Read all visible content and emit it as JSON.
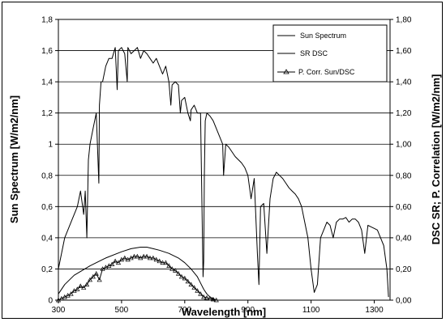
{
  "chart_data": {
    "type": "line",
    "xlabel": "Wavelength [nm]",
    "ylabel": "Sun Spectrum [W/m2/nm]",
    "y2label": "DSC SR; P. Correlation [W/m2/nm]",
    "xlim": [
      300,
      1350
    ],
    "ylim": [
      0,
      1.8
    ],
    "y2lim": [
      0,
      1.8
    ],
    "x_ticks": [
      "300",
      "500",
      "700",
      "900",
      "1100",
      "1300"
    ],
    "x_tick_values": [
      300,
      500,
      700,
      900,
      1100,
      1300
    ],
    "y_ticks": [
      "0",
      "0,2",
      "0,4",
      "0,6",
      "0,8",
      "1",
      "1,2",
      "1,4",
      "1,6",
      "1,8"
    ],
    "y_tick_values": [
      0,
      0.2,
      0.4,
      0.6,
      0.8,
      1.0,
      1.2,
      1.4,
      1.6,
      1.8
    ],
    "y2_ticks": [
      "0,00",
      "0,20",
      "0,40",
      "0,60",
      "0,80",
      "1,00",
      "1,20",
      "1,40",
      "1,60",
      "1,80"
    ],
    "grid": "horizontal",
    "legend_position": "top-right",
    "series": [
      {
        "name": "Sun Spectrum",
        "color": "#000000",
        "x": [
          300,
          320,
          340,
          360,
          370,
          380,
          385,
          390,
          395,
          400,
          410,
          420,
          428,
          430,
          435,
          440,
          450,
          460,
          470,
          480,
          486,
          490,
          500,
          510,
          518,
          520,
          530,
          540,
          550,
          560,
          570,
          580,
          590,
          600,
          610,
          620,
          630,
          640,
          650,
          656,
          660,
          670,
          680,
          686,
          690,
          700,
          710,
          718,
          720,
          730,
          740,
          750,
          758,
          760,
          762,
          765,
          770,
          780,
          790,
          800,
          810,
          820,
          823,
          830,
          840,
          850,
          860,
          870,
          880,
          890,
          900,
          910,
          920,
          930,
          935,
          940,
          950,
          960,
          970,
          980,
          990,
          1000,
          1010,
          1020,
          1030,
          1040,
          1050,
          1060,
          1070,
          1080,
          1090,
          1100,
          1110,
          1120,
          1130,
          1140,
          1150,
          1160,
          1170,
          1180,
          1190,
          1200,
          1210,
          1220,
          1230,
          1240,
          1250,
          1260,
          1270,
          1280,
          1290,
          1300,
          1310,
          1320,
          1330,
          1340,
          1345
        ],
        "y": [
          0.2,
          0.4,
          0.5,
          0.6,
          0.7,
          0.55,
          0.7,
          0.4,
          0.9,
          1.0,
          1.1,
          1.2,
          0.75,
          1.25,
          1.4,
          1.4,
          1.5,
          1.55,
          1.55,
          1.62,
          1.35,
          1.6,
          1.62,
          1.58,
          1.4,
          1.62,
          1.58,
          1.6,
          1.62,
          1.55,
          1.6,
          1.58,
          1.55,
          1.52,
          1.55,
          1.5,
          1.45,
          1.5,
          1.4,
          1.25,
          1.38,
          1.4,
          1.38,
          1.2,
          1.28,
          1.3,
          1.2,
          1.15,
          1.22,
          1.25,
          1.2,
          1.2,
          0.15,
          0.25,
          0.8,
          1.15,
          1.2,
          1.18,
          1.15,
          1.1,
          1.05,
          1.0,
          0.8,
          1.0,
          0.98,
          0.95,
          0.92,
          0.9,
          0.88,
          0.85,
          0.8,
          0.65,
          0.78,
          0.3,
          0.1,
          0.6,
          0.62,
          0.3,
          0.65,
          0.78,
          0.82,
          0.8,
          0.78,
          0.75,
          0.72,
          0.7,
          0.68,
          0.65,
          0.6,
          0.5,
          0.4,
          0.2,
          0.05,
          0.1,
          0.4,
          0.45,
          0.5,
          0.48,
          0.4,
          0.5,
          0.52,
          0.52,
          0.53,
          0.5,
          0.52,
          0.52,
          0.5,
          0.45,
          0.3,
          0.48,
          0.47,
          0.46,
          0.45,
          0.4,
          0.35,
          0.2,
          0.02
        ]
      },
      {
        "name": "SR DSC",
        "color": "#000000",
        "x": [
          300,
          320,
          350,
          400,
          450,
          500,
          530,
          560,
          580,
          600,
          620,
          650,
          680,
          700,
          720,
          740,
          750,
          760,
          770,
          780,
          790,
          800
        ],
        "y": [
          0.04,
          0.1,
          0.16,
          0.22,
          0.27,
          0.31,
          0.33,
          0.34,
          0.34,
          0.33,
          0.32,
          0.3,
          0.27,
          0.24,
          0.2,
          0.15,
          0.11,
          0.07,
          0.04,
          0.02,
          0.01,
          0.0
        ]
      },
      {
        "name": "P. Corr. Sun/DSC",
        "color": "#000000",
        "marker": "triangle",
        "x": [
          300,
          310,
          320,
          330,
          340,
          350,
          360,
          370,
          380,
          390,
          400,
          410,
          420,
          430,
          440,
          450,
          460,
          470,
          480,
          490,
          500,
          510,
          520,
          530,
          540,
          550,
          560,
          570,
          580,
          590,
          600,
          610,
          620,
          630,
          640,
          650,
          660,
          670,
          680,
          690,
          700,
          710,
          720,
          730,
          740,
          750,
          760,
          770,
          780,
          790,
          800
        ],
        "y": [
          0.0,
          0.01,
          0.02,
          0.03,
          0.04,
          0.06,
          0.07,
          0.09,
          0.08,
          0.1,
          0.13,
          0.15,
          0.17,
          0.13,
          0.2,
          0.21,
          0.22,
          0.23,
          0.25,
          0.24,
          0.26,
          0.27,
          0.26,
          0.27,
          0.28,
          0.28,
          0.27,
          0.28,
          0.28,
          0.27,
          0.27,
          0.26,
          0.25,
          0.24,
          0.24,
          0.22,
          0.2,
          0.19,
          0.17,
          0.15,
          0.14,
          0.12,
          0.1,
          0.08,
          0.06,
          0.04,
          0.02,
          0.015,
          0.01,
          0.005,
          0.0
        ]
      }
    ]
  }
}
